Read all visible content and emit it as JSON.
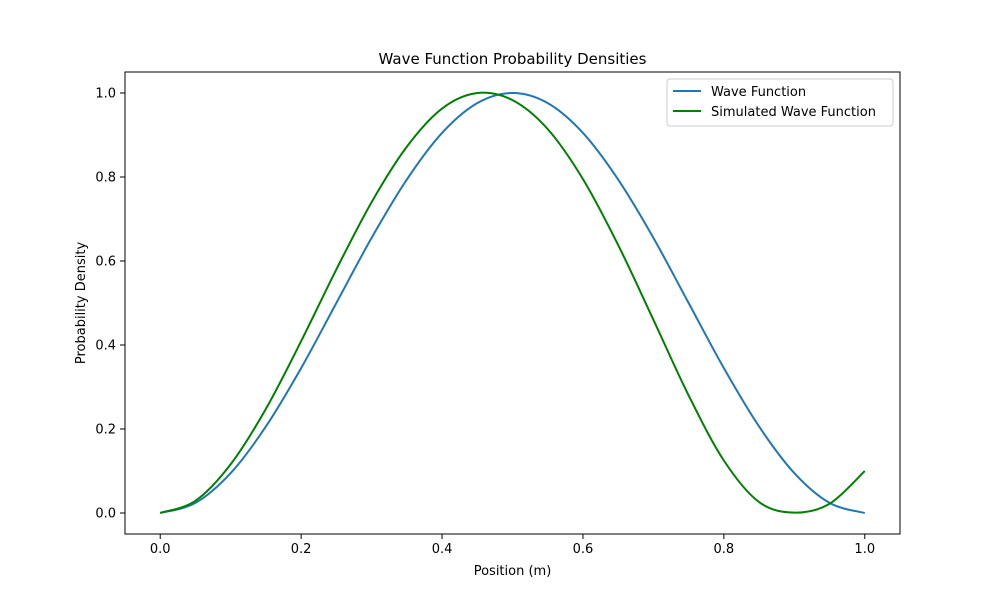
{
  "chart_data": {
    "type": "line",
    "title": "Wave Function Probability Densities",
    "xlabel": "Position (m)",
    "ylabel": "Probability Density",
    "xlim": [
      -0.05,
      1.05
    ],
    "ylim": [
      -0.05,
      1.05
    ],
    "x_ticks": [
      0.0,
      0.2,
      0.4,
      0.6,
      0.8,
      1.0
    ],
    "y_ticks": [
      0.0,
      0.2,
      0.4,
      0.6,
      0.8,
      1.0
    ],
    "x_tick_labels": [
      "0.0",
      "0.2",
      "0.4",
      "0.6",
      "0.8",
      "1.0"
    ],
    "y_tick_labels": [
      "0.0",
      "0.2",
      "0.4",
      "0.6",
      "0.8",
      "1.0"
    ],
    "grid": false,
    "legend_position": "top-right",
    "series": [
      {
        "name": "Wave Function",
        "color": "#1f77b4",
        "x": [
          0.0,
          0.05,
          0.1,
          0.15,
          0.2,
          0.25,
          0.3,
          0.35,
          0.4,
          0.45,
          0.5,
          0.55,
          0.6,
          0.65,
          0.7,
          0.75,
          0.8,
          0.85,
          0.9,
          0.95,
          1.0
        ],
        "y": [
          0.0,
          0.024,
          0.095,
          0.206,
          0.345,
          0.5,
          0.655,
          0.794,
          0.905,
          0.976,
          1.0,
          0.976,
          0.905,
          0.794,
          0.655,
          0.5,
          0.345,
          0.206,
          0.095,
          0.024,
          0.0
        ]
      },
      {
        "name": "Simulated Wave Function",
        "color": "#008000",
        "x": [
          0.0,
          0.05,
          0.1,
          0.15,
          0.2,
          0.25,
          0.3,
          0.35,
          0.4,
          0.45,
          0.5,
          0.55,
          0.6,
          0.65,
          0.7,
          0.75,
          0.8,
          0.85,
          0.9,
          0.95,
          1.0
        ],
        "y": [
          0.0,
          0.029,
          0.116,
          0.248,
          0.409,
          0.58,
          0.74,
          0.872,
          0.963,
          1.0,
          0.983,
          0.914,
          0.795,
          0.638,
          0.46,
          0.28,
          0.125,
          0.026,
          0.001,
          0.022,
          0.1
        ]
      }
    ]
  }
}
